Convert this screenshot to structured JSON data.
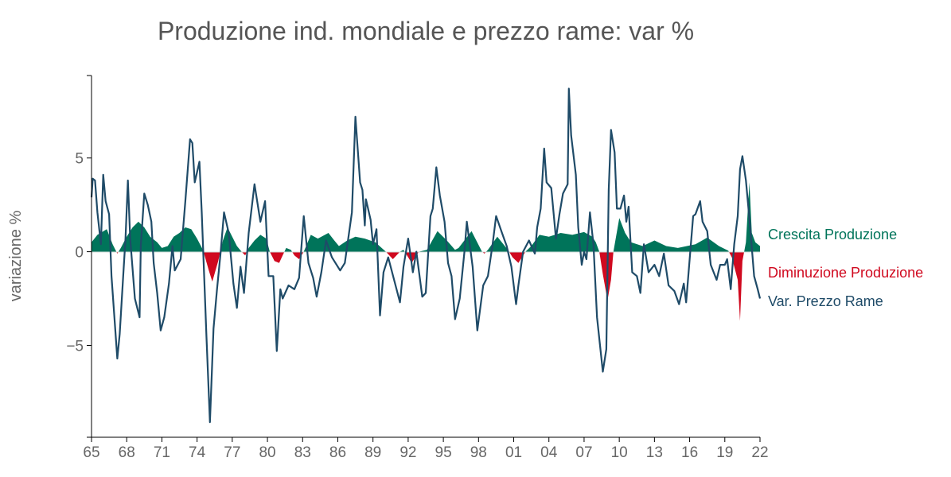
{
  "chart_data": {
    "type": "area",
    "title": "Produzione ind. mondiale e prezzo rame: var %",
    "xlabel": "",
    "ylabel": "variazione %",
    "xlim": [
      1965,
      2022
    ],
    "ylim": [
      -9.9,
      9.4
    ],
    "grid": false,
    "legend_placement": "right",
    "x_ticks": [
      {
        "value": 1965,
        "label": "65"
      },
      {
        "value": 1968,
        "label": "68"
      },
      {
        "value": 1971,
        "label": "71"
      },
      {
        "value": 1974,
        "label": "74"
      },
      {
        "value": 1977,
        "label": "77"
      },
      {
        "value": 1980,
        "label": "80"
      },
      {
        "value": 1983,
        "label": "83"
      },
      {
        "value": 1986,
        "label": "86"
      },
      {
        "value": 1989,
        "label": "89"
      },
      {
        "value": 1992,
        "label": "92"
      },
      {
        "value": 1995,
        "label": "95"
      },
      {
        "value": 1998,
        "label": "98"
      },
      {
        "value": 2001,
        "label": "01"
      },
      {
        "value": 2004,
        "label": "04"
      },
      {
        "value": 2007,
        "label": "07"
      },
      {
        "value": 2010,
        "label": "10"
      },
      {
        "value": 2013,
        "label": "13"
      },
      {
        "value": 2016,
        "label": "16"
      },
      {
        "value": 2019,
        "label": "19"
      },
      {
        "value": 2022,
        "label": "22"
      }
    ],
    "y_ticks": [
      {
        "value": -5,
        "label": "−5"
      },
      {
        "value": 0,
        "label": "0"
      },
      {
        "value": 5,
        "label": "5"
      }
    ],
    "colors": {
      "growth": "#00745a",
      "decline": "#d0091f",
      "price": "#1f4b68"
    },
    "series": [
      {
        "name": "Crescita Produzione / Diminuzione Produzione",
        "kind": "area",
        "points": [
          [
            1965.0,
            0.5
          ],
          [
            1965.5,
            0.9
          ],
          [
            1966.3,
            1.2
          ],
          [
            1966.8,
            0.4
          ],
          [
            1967.2,
            -0.1
          ],
          [
            1967.5,
            0.2
          ],
          [
            1968.0,
            0.8
          ],
          [
            1968.5,
            1.3
          ],
          [
            1969.0,
            1.6
          ],
          [
            1969.5,
            1.3
          ],
          [
            1970.0,
            0.8
          ],
          [
            1970.6,
            0.5
          ],
          [
            1971.0,
            0.2
          ],
          [
            1971.5,
            0.3
          ],
          [
            1972.0,
            0.8
          ],
          [
            1972.5,
            1.0
          ],
          [
            1973.0,
            1.3
          ],
          [
            1973.5,
            1.2
          ],
          [
            1974.0,
            0.7
          ],
          [
            1974.5,
            0.1
          ],
          [
            1975.0,
            -1.0
          ],
          [
            1975.3,
            -1.6
          ],
          [
            1975.8,
            -0.5
          ],
          [
            1976.2,
            0.6
          ],
          [
            1976.6,
            1.3
          ],
          [
            1977.0,
            0.8
          ],
          [
            1977.4,
            0.3
          ],
          [
            1977.8,
            0.0
          ],
          [
            1978.1,
            -0.2
          ],
          [
            1978.4,
            0.2
          ],
          [
            1978.9,
            0.6
          ],
          [
            1979.4,
            0.9
          ],
          [
            1979.9,
            0.7
          ],
          [
            1980.2,
            0.0
          ],
          [
            1980.6,
            -0.5
          ],
          [
            1981.0,
            -0.6
          ],
          [
            1981.3,
            -0.2
          ],
          [
            1981.6,
            0.2
          ],
          [
            1982.0,
            0.1
          ],
          [
            1982.3,
            -0.2
          ],
          [
            1982.7,
            -0.4
          ],
          [
            1983.1,
            0.0
          ],
          [
            1983.7,
            0.9
          ],
          [
            1984.3,
            0.7
          ],
          [
            1985.2,
            1.0
          ],
          [
            1985.7,
            0.6
          ],
          [
            1986.1,
            0.3
          ],
          [
            1986.8,
            0.6
          ],
          [
            1987.5,
            0.8
          ],
          [
            1988.3,
            0.7
          ],
          [
            1989.2,
            0.5
          ],
          [
            1990.1,
            0.0
          ],
          [
            1990.7,
            -0.4
          ],
          [
            1991.3,
            0.0
          ],
          [
            1991.6,
            0.1
          ],
          [
            1992.3,
            -0.6
          ],
          [
            1992.9,
            0.0
          ],
          [
            1993.6,
            0.1
          ],
          [
            1994.5,
            1.1
          ],
          [
            1995.3,
            0.6
          ],
          [
            1996.0,
            0.1
          ],
          [
            1996.3,
            0.2
          ],
          [
            1997.4,
            1.1
          ],
          [
            1998.3,
            0.0
          ],
          [
            1998.5,
            -0.1
          ],
          [
            1998.8,
            0.1
          ],
          [
            1999.6,
            0.8
          ],
          [
            2000.5,
            0.1
          ],
          [
            2000.9,
            -0.3
          ],
          [
            2001.4,
            -0.6
          ],
          [
            2002.0,
            0.0
          ],
          [
            2002.5,
            0.3
          ],
          [
            2003.2,
            0.9
          ],
          [
            2004.0,
            0.8
          ],
          [
            2005.0,
            1.0
          ],
          [
            2006.0,
            0.9
          ],
          [
            2007.0,
            1.05
          ],
          [
            2007.7,
            0.8
          ],
          [
            2008.0,
            0.5
          ],
          [
            2008.3,
            0.0
          ],
          [
            2008.6,
            -1.2
          ],
          [
            2009.0,
            -2.6
          ],
          [
            2009.3,
            -1.5
          ],
          [
            2009.5,
            0.0
          ],
          [
            2010.0,
            1.8
          ],
          [
            2010.5,
            1.0
          ],
          [
            2011.0,
            0.5
          ],
          [
            2012.0,
            0.3
          ],
          [
            2013.0,
            0.6
          ],
          [
            2014.0,
            0.3
          ],
          [
            2015.0,
            0.2
          ],
          [
            2016.5,
            0.4
          ],
          [
            2017.5,
            0.75
          ],
          [
            2018.5,
            0.3
          ],
          [
            2019.3,
            0.05
          ],
          [
            2019.6,
            -0.3
          ],
          [
            2020.1,
            -1.5
          ],
          [
            2020.3,
            -3.7
          ],
          [
            2020.5,
            -0.5
          ],
          [
            2020.8,
            0.5
          ],
          [
            2021.1,
            3.7
          ],
          [
            2021.3,
            1.0
          ],
          [
            2021.6,
            0.5
          ],
          [
            2022.0,
            0.3
          ]
        ]
      },
      {
        "name": "Var. Prezzo Rame",
        "kind": "line",
        "points": [
          [
            1965.0,
            2.9
          ],
          [
            1965.1,
            3.9
          ],
          [
            1965.3,
            3.8
          ],
          [
            1965.5,
            2.1
          ],
          [
            1965.8,
            0.4
          ],
          [
            1966.0,
            4.1
          ],
          [
            1966.2,
            2.7
          ],
          [
            1966.5,
            2.0
          ],
          [
            1966.7,
            -1.3
          ],
          [
            1967.2,
            -5.7
          ],
          [
            1967.4,
            -4.4
          ],
          [
            1967.7,
            -1.3
          ],
          [
            1967.9,
            0.7
          ],
          [
            1968.1,
            3.8
          ],
          [
            1968.3,
            0.7
          ],
          [
            1968.7,
            -2.5
          ],
          [
            1969.1,
            -3.5
          ],
          [
            1969.2,
            0.3
          ],
          [
            1969.5,
            3.1
          ],
          [
            1969.8,
            2.5
          ],
          [
            1970.1,
            1.6
          ],
          [
            1970.3,
            -0.6
          ],
          [
            1970.6,
            -2.2
          ],
          [
            1970.9,
            -4.2
          ],
          [
            1971.2,
            -3.5
          ],
          [
            1971.6,
            -1.7
          ],
          [
            1971.9,
            0.3
          ],
          [
            1972.1,
            -1.0
          ],
          [
            1972.6,
            -0.4
          ],
          [
            1973.0,
            2.7
          ],
          [
            1973.4,
            6.0
          ],
          [
            1973.6,
            5.8
          ],
          [
            1973.8,
            3.7
          ],
          [
            1974.2,
            4.8
          ],
          [
            1974.4,
            2.1
          ],
          [
            1974.8,
            -4.5
          ],
          [
            1975.1,
            -9.1
          ],
          [
            1975.4,
            -4.1
          ],
          [
            1975.7,
            -2.0
          ],
          [
            1976.0,
            -0.1
          ],
          [
            1976.3,
            2.1
          ],
          [
            1976.7,
            1.0
          ],
          [
            1977.1,
            -1.7
          ],
          [
            1977.4,
            -3.0
          ],
          [
            1977.7,
            -0.8
          ],
          [
            1978.0,
            -2.2
          ],
          [
            1978.4,
            1.0
          ],
          [
            1978.9,
            3.6
          ],
          [
            1979.4,
            1.6
          ],
          [
            1979.8,
            2.7
          ],
          [
            1980.1,
            -1.3
          ],
          [
            1980.5,
            -1.3
          ],
          [
            1980.8,
            -5.3
          ],
          [
            1981.1,
            -2.0
          ],
          [
            1981.3,
            -2.5
          ],
          [
            1981.8,
            -1.8
          ],
          [
            1982.3,
            -2.0
          ],
          [
            1982.7,
            -1.4
          ],
          [
            1983.1,
            1.9
          ],
          [
            1983.5,
            -0.6
          ],
          [
            1983.9,
            -1.4
          ],
          [
            1984.2,
            -2.4
          ],
          [
            1984.6,
            -1.1
          ],
          [
            1985.0,
            0.6
          ],
          [
            1985.5,
            -0.3
          ],
          [
            1986.2,
            -1.0
          ],
          [
            1986.6,
            -0.6
          ],
          [
            1987.2,
            2.1
          ],
          [
            1987.5,
            7.2
          ],
          [
            1987.9,
            3.7
          ],
          [
            1988.1,
            3.3
          ],
          [
            1988.3,
            1.4
          ],
          [
            1988.4,
            2.8
          ],
          [
            1988.8,
            1.7
          ],
          [
            1989.0,
            0.4
          ],
          [
            1989.3,
            1.2
          ],
          [
            1989.6,
            -3.4
          ],
          [
            1989.9,
            -1.1
          ],
          [
            1990.3,
            -0.3
          ],
          [
            1990.8,
            -1.5
          ],
          [
            1991.3,
            -2.7
          ],
          [
            1991.6,
            -0.8
          ],
          [
            1992.0,
            0.7
          ],
          [
            1992.4,
            -1.1
          ],
          [
            1992.7,
            0.0
          ],
          [
            1993.2,
            -2.4
          ],
          [
            1993.5,
            -2.2
          ],
          [
            1993.9,
            1.9
          ],
          [
            1994.1,
            2.3
          ],
          [
            1994.4,
            4.5
          ],
          [
            1994.7,
            3.0
          ],
          [
            1995.1,
            1.6
          ],
          [
            1995.4,
            -0.6
          ],
          [
            1995.7,
            -1.3
          ],
          [
            1996.0,
            -3.6
          ],
          [
            1996.4,
            -2.5
          ],
          [
            1996.8,
            0.0
          ],
          [
            1997.0,
            1.6
          ],
          [
            1997.5,
            -0.8
          ],
          [
            1997.9,
            -4.2
          ],
          [
            1998.4,
            -1.8
          ],
          [
            1998.8,
            -1.3
          ],
          [
            1999.2,
            0.4
          ],
          [
            1999.5,
            1.9
          ],
          [
            2000.0,
            1.0
          ],
          [
            2000.4,
            0.3
          ],
          [
            2000.8,
            -0.8
          ],
          [
            2001.2,
            -2.8
          ],
          [
            2001.4,
            -1.8
          ],
          [
            2001.8,
            0.0
          ],
          [
            2002.3,
            0.6
          ],
          [
            2002.8,
            -0.1
          ],
          [
            2003.0,
            1.3
          ],
          [
            2003.3,
            2.3
          ],
          [
            2003.6,
            5.5
          ],
          [
            2003.8,
            3.7
          ],
          [
            2004.2,
            3.4
          ],
          [
            2004.6,
            0.7
          ],
          [
            2004.9,
            2.0
          ],
          [
            2005.2,
            3.1
          ],
          [
            2005.6,
            3.6
          ],
          [
            2005.7,
            8.7
          ],
          [
            2005.9,
            6.2
          ],
          [
            2006.3,
            4.1
          ],
          [
            2006.5,
            1.3
          ],
          [
            2006.8,
            -0.7
          ],
          [
            2007.0,
            0.0
          ],
          [
            2007.2,
            -0.4
          ],
          [
            2007.5,
            2.1
          ],
          [
            2007.8,
            0.4
          ],
          [
            2008.1,
            -3.5
          ],
          [
            2008.6,
            -6.4
          ],
          [
            2008.9,
            -5.2
          ],
          [
            2009.1,
            3.3
          ],
          [
            2009.3,
            6.5
          ],
          [
            2009.6,
            5.3
          ],
          [
            2009.8,
            2.3
          ],
          [
            2010.1,
            2.3
          ],
          [
            2010.4,
            3.0
          ],
          [
            2010.6,
            1.6
          ],
          [
            2010.8,
            2.4
          ],
          [
            2011.1,
            -1.1
          ],
          [
            2011.5,
            -1.3
          ],
          [
            2011.8,
            -2.2
          ],
          [
            2012.1,
            0.4
          ],
          [
            2012.5,
            -1.1
          ],
          [
            2013.0,
            -0.7
          ],
          [
            2013.4,
            -1.3
          ],
          [
            2013.8,
            -0.1
          ],
          [
            2014.2,
            -1.8
          ],
          [
            2014.7,
            -2.1
          ],
          [
            2015.1,
            -2.8
          ],
          [
            2015.5,
            -1.7
          ],
          [
            2015.7,
            -2.7
          ],
          [
            2016.3,
            1.9
          ],
          [
            2016.5,
            2.0
          ],
          [
            2016.9,
            2.7
          ],
          [
            2017.1,
            1.6
          ],
          [
            2017.5,
            1.1
          ],
          [
            2017.8,
            -0.7
          ],
          [
            2018.3,
            -1.5
          ],
          [
            2018.6,
            -0.7
          ],
          [
            2019.0,
            -0.7
          ],
          [
            2019.2,
            -0.4
          ],
          [
            2019.5,
            -2.0
          ],
          [
            2019.8,
            0.4
          ],
          [
            2020.1,
            1.9
          ],
          [
            2020.3,
            4.4
          ],
          [
            2020.5,
            5.1
          ],
          [
            2020.8,
            3.8
          ],
          [
            2021.0,
            2.4
          ],
          [
            2021.2,
            1.0
          ],
          [
            2021.5,
            -1.3
          ],
          [
            2021.8,
            -2.0
          ],
          [
            2022.0,
            -2.5
          ]
        ]
      }
    ],
    "legend": {
      "growth": "Crescita Produzione",
      "decline": "Diminuzione Produzione",
      "price": "Var. Prezzo Rame"
    }
  }
}
